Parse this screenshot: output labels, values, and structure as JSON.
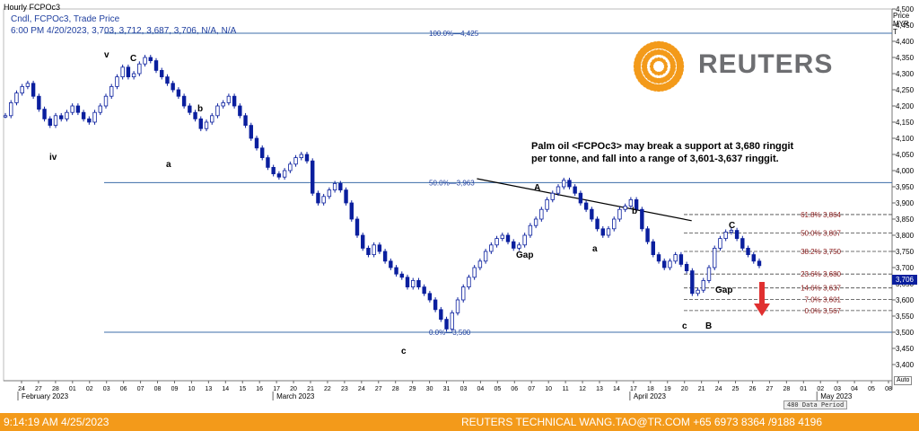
{
  "header": {
    "title": "Hourly FCPOc3",
    "line1": "Cndl, FCPOc3, Trade Price",
    "line2": "6:00 PM 4/20/2023, 3,703, 3,712, 3,687, 3,706, N/A, N/A"
  },
  "logo": {
    "text": "REUTERS",
    "color": "#f39a1a"
  },
  "annotation": {
    "line1": "Palm oil <FCPOc3> may break a support at 3,680 ringgit",
    "line2": "per tonne, and fall into a range of 3,601-3,637 ringgit."
  },
  "axis": {
    "price_unit": [
      "Price",
      "MYR",
      "T"
    ],
    "auto_label": "Auto",
    "data_period": "480 Data Period"
  },
  "footer": {
    "timestamp": "9:14:19 AM 4/25/2023",
    "credit": "REUTERS TECHNICAL  WANG.TAO@TR.COM  +65 6973 8364 /9188 4196"
  },
  "colors": {
    "candle": "#0a1f9e",
    "level_line": "#3c6da8",
    "fib_red": "#8b1a1a",
    "footer_bg": "#f39a1a",
    "arrow": "#e03030"
  },
  "chart_data": {
    "type": "candlestick",
    "title": "Hourly FCPOc3",
    "ylabel": "Price MYR T",
    "ylim": [
      3350,
      4500
    ],
    "yticks": [
      3400,
      3450,
      3500,
      3550,
      3600,
      3650,
      3700,
      3750,
      3800,
      3850,
      3900,
      3950,
      4000,
      4050,
      4100,
      4150,
      4200,
      4250,
      4300,
      4350,
      4400,
      4450,
      4500
    ],
    "last_price": "3,706",
    "x_date_labels": [
      "24",
      "27",
      "28",
      "01",
      "02",
      "03",
      "06",
      "07",
      "08",
      "09",
      "10",
      "13",
      "14",
      "15",
      "16",
      "17",
      "20",
      "21",
      "22",
      "23",
      "24",
      "27",
      "28",
      "29",
      "30",
      "31",
      "03",
      "04",
      "05",
      "06",
      "07",
      "10",
      "11",
      "12",
      "13",
      "14",
      "17",
      "18",
      "19",
      "20",
      "21",
      "24",
      "25",
      "26",
      "27",
      "28",
      "01",
      "02",
      "03",
      "04",
      "05",
      "08"
    ],
    "x_month_labels": [
      "February 2023",
      "March 2023",
      "April 2023",
      "May 2023"
    ],
    "fib_levels_major": [
      {
        "label": "100.0%",
        "value": "4,425",
        "price": 4425
      },
      {
        "label": "50.0%",
        "value": "3,963",
        "price": 3963
      },
      {
        "label": "0.0%",
        "value": "3,500",
        "price": 3500
      }
    ],
    "fib_levels_minor": [
      {
        "label": "61.8%",
        "value": "3,864",
        "price": 3864
      },
      {
        "label": "50.0%",
        "value": "3,807",
        "price": 3807
      },
      {
        "label": "38.2%",
        "value": "3,750",
        "price": 3750
      },
      {
        "label": "23.6%",
        "value": "3,680",
        "price": 3680
      },
      {
        "label": "14.6%",
        "value": "3,637",
        "price": 3637
      },
      {
        "label": "7.0%",
        "value": "3,601",
        "price": 3601
      },
      {
        "label": "0.0%",
        "value": "3,567",
        "price": 3567
      }
    ],
    "wave_labels": [
      "iv",
      "v",
      "C",
      "b",
      "a",
      "c",
      "A",
      "b",
      "a",
      "c",
      "B",
      "C",
      "Gap",
      "Gap"
    ],
    "trendline": {
      "from": [
        "04",
        3975
      ],
      "to": [
        "20",
        3845
      ]
    },
    "series": [
      {
        "values": [
          4170,
          4210,
          4240,
          4260,
          4270,
          4230,
          4190,
          4160,
          4140,
          4170,
          4160,
          4180,
          4200,
          4180,
          4160,
          4150,
          4180,
          4200,
          4230,
          4260,
          4290,
          4320,
          4290,
          4300,
          4330,
          4350,
          4340,
          4310,
          4290,
          4270,
          4250,
          4230,
          4200,
          4180,
          4160,
          4130,
          4150,
          4170,
          4200,
          4210,
          4230,
          4200,
          4170,
          4140,
          4100,
          4070,
          4040,
          4010,
          3990,
          3980,
          4000,
          4020,
          4040,
          4050,
          4030,
          3930,
          3900,
          3920,
          3940,
          3960,
          3940,
          3900,
          3850,
          3800,
          3760,
          3740,
          3770,
          3750,
          3720,
          3700,
          3680,
          3670,
          3640,
          3660,
          3640,
          3620,
          3600,
          3570,
          3540,
          3510,
          3560,
          3600,
          3640,
          3670,
          3700,
          3720,
          3750,
          3770,
          3790,
          3800,
          3780,
          3760,
          3770,
          3800,
          3830,
          3850,
          3880,
          3910,
          3930,
          3950,
          3970,
          3950,
          3930,
          3900,
          3880,
          3850,
          3820,
          3800,
          3820,
          3850,
          3880,
          3890,
          3910,
          3880,
          3820,
          3780,
          3740,
          3720,
          3700,
          3720,
          3740,
          3710,
          3690,
          3620,
          3630,
          3660,
          3700,
          3760,
          3790,
          3810,
          3815,
          3790,
          3760,
          3740,
          3720,
          3706
        ]
      }
    ]
  }
}
